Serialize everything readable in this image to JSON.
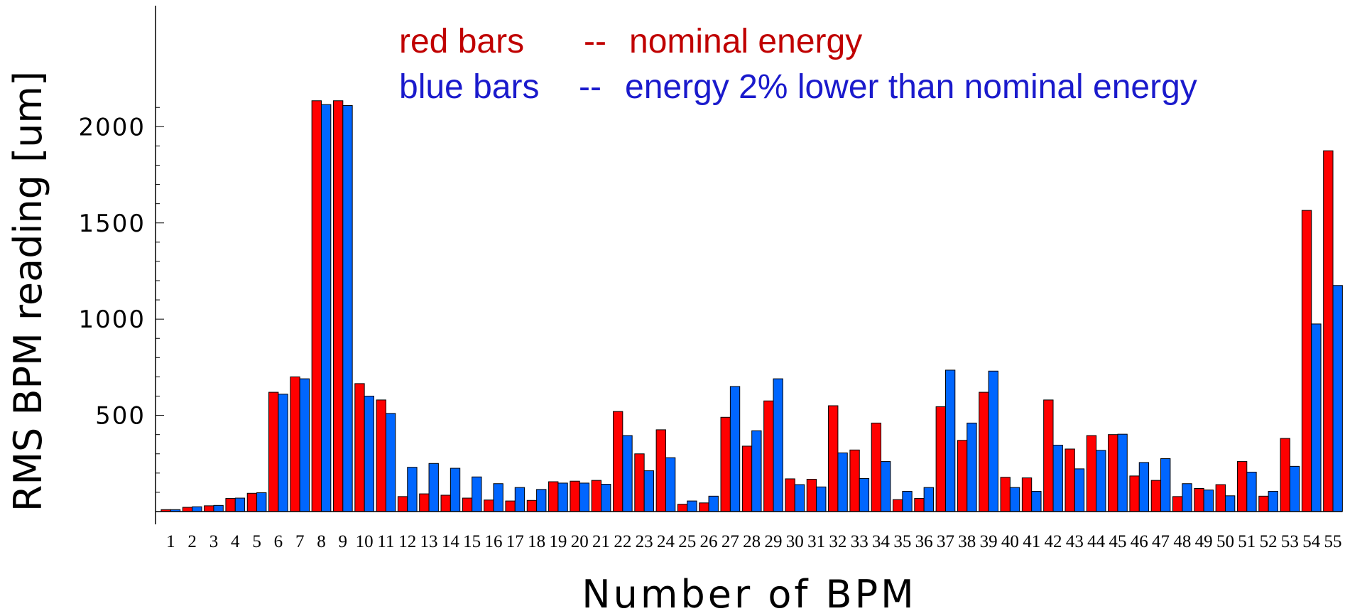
{
  "chart_data": {
    "type": "bar",
    "xlabel": "Number of BPM",
    "ylabel": "RMS BPM reading [um]",
    "ylim": [
      0,
      2200
    ],
    "yticks": [
      500,
      1000,
      1500,
      2000
    ],
    "grid": false,
    "legend_position": "top-center",
    "legend": [
      {
        "label": "red bars",
        "sep": "--",
        "desc": "nominal energy",
        "color": "#c00000"
      },
      {
        "label": "blue bars",
        "sep": "--",
        "desc": "energy 2% lower than nominal energy",
        "color": "#1a1acc"
      }
    ],
    "categories": [
      "1",
      "2",
      "3",
      "4",
      "5",
      "6",
      "7",
      "8",
      "9",
      "10",
      "11",
      "12",
      "13",
      "14",
      "15",
      "16",
      "17",
      "18",
      "19",
      "20",
      "21",
      "22",
      "23",
      "24",
      "25",
      "26",
      "27",
      "28",
      "29",
      "30",
      "31",
      "32",
      "33",
      "34",
      "35",
      "36",
      "37",
      "38",
      "39",
      "40",
      "41",
      "42",
      "43",
      "44",
      "45",
      "46",
      "47",
      "48",
      "49",
      "50",
      "51",
      "52",
      "53",
      "54",
      "55"
    ],
    "series": [
      {
        "name": "nominal energy",
        "color": "#ff0000",
        "values": [
          10,
          22,
          30,
          68,
          95,
          620,
          700,
          2135,
          2135,
          665,
          580,
          78,
          92,
          85,
          70,
          60,
          55,
          58,
          155,
          158,
          162,
          520,
          300,
          425,
          38,
          45,
          490,
          340,
          575,
          170,
          168,
          550,
          320,
          460,
          62,
          68,
          545,
          370,
          620,
          178,
          175,
          580,
          325,
          395,
          400,
          185,
          162,
          78,
          120,
          140,
          260,
          80,
          380,
          1565,
          1875
        ]
      },
      {
        "name": "energy 2% lower than nominal energy",
        "color": "#0066ff",
        "values": [
          10,
          25,
          32,
          70,
          98,
          610,
          690,
          2115,
          2110,
          600,
          510,
          230,
          250,
          225,
          180,
          145,
          125,
          115,
          148,
          148,
          142,
          395,
          212,
          280,
          55,
          80,
          650,
          420,
          690,
          140,
          128,
          305,
          172,
          260,
          105,
          125,
          735,
          460,
          730,
          125,
          105,
          345,
          222,
          318,
          402,
          255,
          275,
          145,
          112,
          82,
          205,
          105,
          235,
          975,
          1175
        ]
      }
    ]
  }
}
